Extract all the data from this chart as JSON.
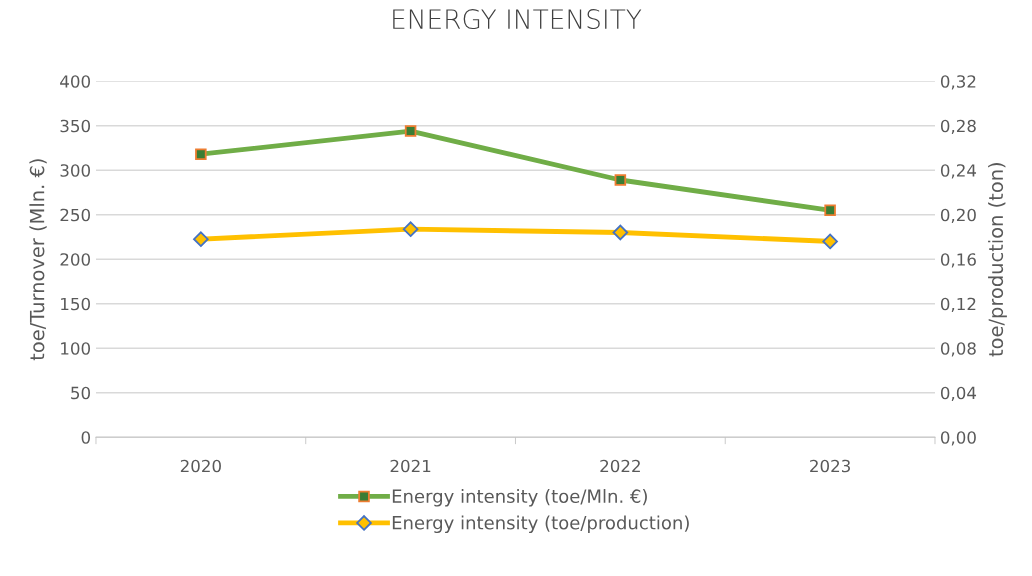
{
  "chart_data": {
    "type": "line",
    "title": "ENERGY INTENSITY",
    "categories": [
      "2020",
      "2021",
      "2022",
      "2023"
    ],
    "series": [
      {
        "name": "Energy intensity (toe/Mln. €)",
        "color": "#70ad47",
        "marker": "square",
        "values": [
          318,
          344,
          289,
          255
        ]
      },
      {
        "name": "Energy intensity (toe/production)",
        "color": "#ffc000",
        "marker": "diamond",
        "axis": "y2",
        "values": [
          0.178,
          0.187,
          0.184,
          0.176
        ]
      }
    ],
    "ylabel": "toe/Turnover (Mln. €)",
    "y2label": "toe/production (ton)",
    "ylim": [
      0,
      400
    ],
    "yticks": [
      0,
      50,
      100,
      150,
      200,
      250,
      300,
      350,
      400
    ],
    "y2lim": [
      0,
      0.32
    ],
    "y2ticks": [
      {
        "value": 0,
        "label": "0,00"
      },
      {
        "value": 0.04,
        "label": "0,04"
      },
      {
        "value": 0.08,
        "label": "0,08"
      },
      {
        "value": 0.12,
        "label": "0,12"
      },
      {
        "value": 0.16,
        "label": "0,16"
      },
      {
        "value": 0.2,
        "label": "0,20"
      },
      {
        "value": 0.24,
        "label": "0,24"
      },
      {
        "value": 0.28,
        "label": "0,28"
      },
      {
        "value": 0.32,
        "label": "0,32"
      }
    ],
    "grid": "y",
    "legend": "bottom"
  }
}
